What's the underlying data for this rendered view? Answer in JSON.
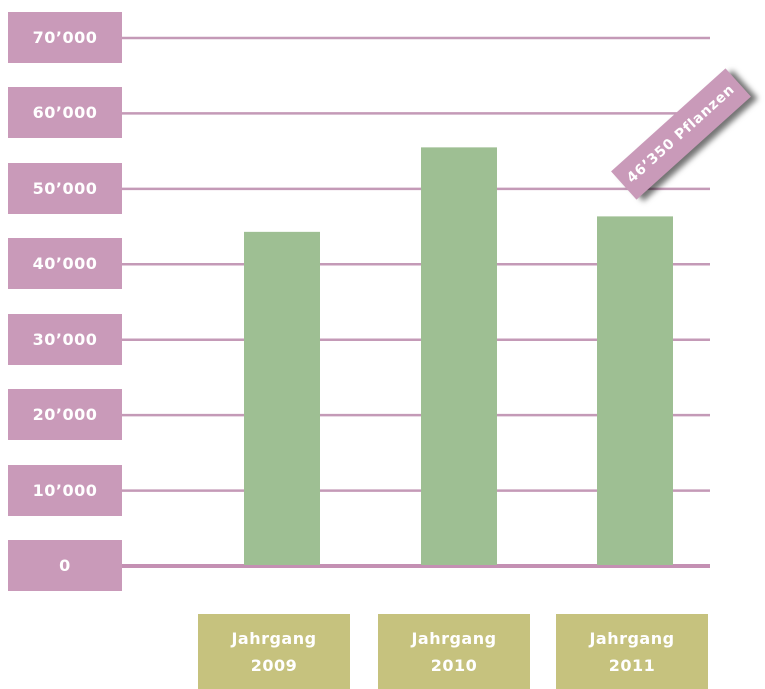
{
  "colors": {
    "y_label_box": "#c99ab9",
    "gridline": "#c49ab7",
    "baseline": "#c490b3",
    "bar": "#9ebf93",
    "x_label_box": "#c6c27e",
    "label_text": "#ffffff"
  },
  "chart_data": {
    "type": "bar",
    "title": "",
    "xlabel": "",
    "ylabel": "",
    "ylim": [
      0,
      70000
    ],
    "yticks": [
      0,
      10000,
      20000,
      30000,
      40000,
      50000,
      60000,
      70000
    ],
    "ytick_labels": [
      "0",
      "10’000",
      "20’000",
      "30’000",
      "40’000",
      "50’000",
      "60’000",
      "70’000"
    ],
    "categories": [
      {
        "line1": "Jahrgang",
        "line2": "2009"
      },
      {
        "line1": "Jahrgang",
        "line2": "2010"
      },
      {
        "line1": "Jahrgang",
        "line2": "2011"
      }
    ],
    "values": [
      44300,
      55500,
      46350
    ],
    "grid": true,
    "annotation": {
      "text": "46’350 Pflanzen",
      "category_index": 2
    }
  }
}
